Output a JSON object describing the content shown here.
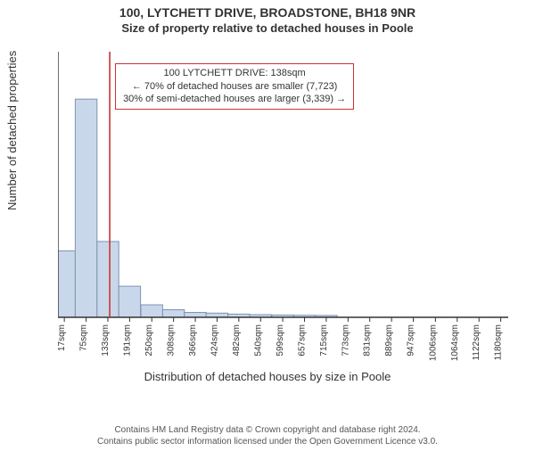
{
  "title_main": "100, LYTCHETT DRIVE, BROADSTONE, BH18 9NR",
  "title_sub": "Size of property relative to detached houses in Poole",
  "xlabel": "Distribution of detached houses by size in Poole",
  "ylabel": "Number of detached properties",
  "infobox": {
    "line1": "100 LYTCHETT DRIVE: 138sqm",
    "line2": "← 70% of detached houses are smaller (7,723)",
    "line3": "30% of semi-detached houses are larger (3,339) →"
  },
  "chart": {
    "type": "histogram",
    "background_color": "#ffffff",
    "bar_fill": "#c9d7ea",
    "bar_stroke": "#7f93b3",
    "axis_color": "#333333",
    "grid_color": "#333333",
    "marker_line_color": "#cc3333",
    "marker_x": 138,
    "xlim": [
      0,
      1200
    ],
    "ylim": [
      0,
      7000
    ],
    "ytick_step": 1000,
    "xticks": [
      17,
      75,
      133,
      191,
      250,
      308,
      366,
      424,
      482,
      540,
      599,
      657,
      715,
      773,
      831,
      889,
      947,
      1006,
      1064,
      1122,
      1180
    ],
    "xtick_suffix": "sqm",
    "bar_width_data": 58,
    "categories_x": [
      17,
      75,
      133,
      191,
      250,
      308,
      366,
      424,
      482,
      540,
      599,
      657,
      715
    ],
    "values": [
      1750,
      5750,
      2000,
      820,
      330,
      200,
      130,
      110,
      85,
      70,
      60,
      55,
      50
    ]
  },
  "copyright": {
    "line1": "Contains HM Land Registry data © Crown copyright and database right 2024.",
    "line2": "Contains public sector information licensed under the Open Government Licence v3.0."
  }
}
